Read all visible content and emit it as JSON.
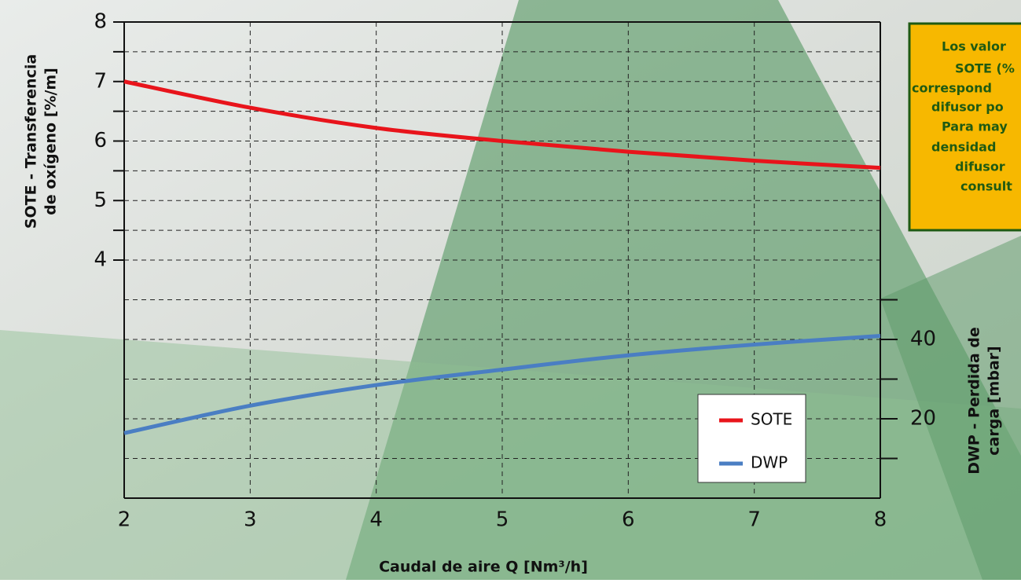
{
  "chart_data": {
    "type": "line",
    "y_label_lines": [
      "SOTE - Transferencia",
      "de oxígeno [%/m]"
    ],
    "y2_label_lines": [
      "DWP - Perdida de",
      "carga [mbar]"
    ],
    "x_label": "Caudal de aire Q [Nm³/h]",
    "note_lines": [
      "Los valor",
      "SOTE (%",
      "correspond",
      "difusor po",
      "Para may",
      "densidad",
      "difusor",
      "consult"
    ],
    "x": [
      2,
      3,
      4,
      5,
      6,
      7,
      8
    ],
    "xlim": [
      2,
      8
    ],
    "xticks": [
      2,
      3,
      4,
      5,
      6,
      7,
      8
    ],
    "ylim": [
      0,
      8
    ],
    "yticks": [
      4,
      5,
      6,
      7,
      8
    ],
    "yminor": [
      4.5,
      5.5,
      6.5,
      7.5
    ],
    "y2lim": [
      0,
      120
    ],
    "y2ticks": [
      20,
      40
    ],
    "y2minor": [
      10,
      30,
      50
    ],
    "grid": true,
    "series": [
      {
        "name": "SOTE",
        "color": "#e8141b",
        "values": [
          7.0,
          6.56,
          6.22,
          6.0,
          5.82,
          5.67,
          5.55
        ]
      },
      {
        "name": "DWP",
        "color": "#4a7ec3",
        "axis": "y2",
        "values": [
          16.4,
          23.3,
          28.5,
          32.4,
          36.0,
          38.7,
          40.9
        ]
      }
    ]
  }
}
